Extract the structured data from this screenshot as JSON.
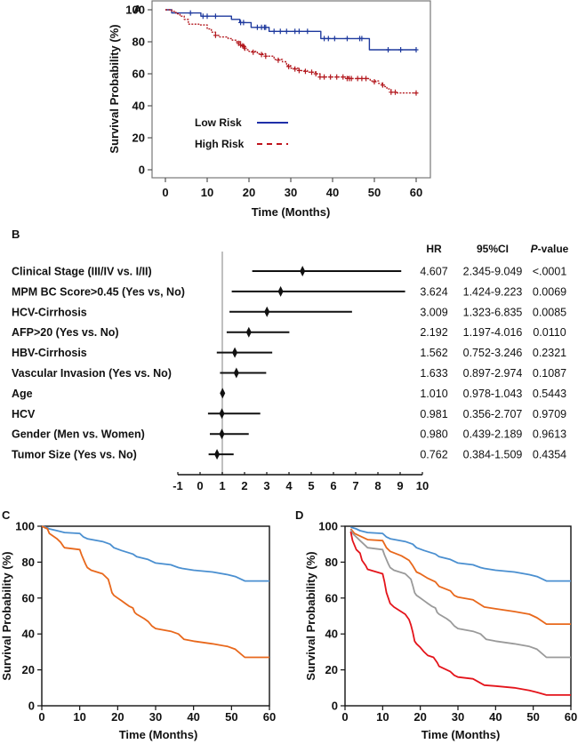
{
  "chart_data": [
    {
      "panel": "A",
      "type": "line",
      "title": "",
      "xlabel": "Time (Months)",
      "ylabel": "Survival Probability (%)",
      "xlim": [
        0,
        60
      ],
      "ylim": [
        0,
        100
      ],
      "xticks": [
        0,
        10,
        20,
        30,
        40,
        50,
        60
      ],
      "yticks": [
        0,
        20,
        40,
        60,
        80,
        100
      ],
      "grid": false,
      "legend_position": "lower-left",
      "series": [
        {
          "name": "Low Risk",
          "color": "#1f3a9e",
          "style": "solid",
          "x": [
            0,
            1.5,
            1.5,
            8.5,
            8.5,
            15.8,
            15.8,
            17.8,
            17.8,
            20.5,
            20.5,
            24.8,
            24.8,
            37.2,
            37.2,
            48.8,
            48.8,
            60
          ],
          "y": [
            100,
            100,
            98,
            98,
            96,
            96,
            94,
            94,
            92,
            92,
            89,
            89,
            86.5,
            86.5,
            82,
            82,
            75,
            75
          ],
          "censor_x": [
            6,
            9,
            10,
            12,
            18,
            18.7,
            22,
            23,
            23.7,
            24,
            26,
            27.5,
            29,
            31,
            32,
            34,
            38,
            39,
            40.5,
            43.5,
            46.5,
            47,
            53.3,
            56.3,
            60
          ],
          "censor_y": [
            98,
            96,
            96,
            96,
            92,
            92,
            89,
            89,
            89,
            89,
            86.5,
            86.5,
            86.5,
            86.5,
            86.5,
            86.5,
            82,
            82,
            82,
            82,
            82,
            82,
            75,
            75,
            75
          ]
        },
        {
          "name": "High Risk",
          "color": "#b3191f",
          "style": "dashed",
          "x": [
            0,
            1.5,
            2.5,
            3.5,
            4.5,
            5.5,
            8,
            10,
            11,
            12,
            13,
            15,
            16,
            17,
            18,
            19,
            20,
            22,
            24,
            26,
            28,
            29,
            30,
            32,
            34,
            36,
            37,
            40,
            44,
            48,
            49,
            51,
            52,
            53,
            54,
            55,
            60
          ],
          "y": [
            100,
            99,
            97.5,
            96,
            94,
            91,
            90.5,
            88,
            86,
            84,
            83,
            82,
            81,
            80,
            78,
            75,
            74,
            72.5,
            71,
            69,
            67.5,
            65,
            63.5,
            62,
            61,
            60,
            58,
            58,
            57,
            57,
            55.5,
            54,
            52,
            50.5,
            48.5,
            48,
            48
          ],
          "censor_x": [
            12,
            17.5,
            18,
            18.5,
            18.8,
            19,
            21,
            23,
            24,
            27,
            29.5,
            31,
            32,
            33.5,
            35,
            36,
            37,
            38,
            39.5,
            41,
            42.5,
            43.5,
            44,
            44.5,
            46,
            47,
            48,
            50,
            52,
            54,
            55,
            60
          ],
          "censor_y": [
            84,
            79,
            78,
            77.5,
            77,
            76,
            73.5,
            72,
            71,
            68.5,
            64.5,
            63,
            62,
            61.5,
            61,
            60,
            58,
            58,
            58,
            58,
            58,
            57,
            57,
            57,
            57,
            57,
            57,
            55,
            53,
            48.5,
            48.5,
            48
          ]
        }
      ]
    },
    {
      "panel": "B",
      "type": "forest",
      "xlim": [
        -1,
        10
      ],
      "xticks": [
        -1,
        0,
        1,
        2,
        3,
        4,
        5,
        6,
        7,
        8,
        9,
        10
      ],
      "reference_line": 1,
      "columns": [
        "HR",
        "95%CI",
        "P-value"
      ],
      "rows": [
        {
          "label": "Clinical Stage (III/IV vs. I/II)",
          "hr": 4.607,
          "lo": 2.345,
          "hi": 9.049,
          "hr_text": "4.607",
          "ci_text": "2.345-9.049",
          "p_text": "<.0001"
        },
        {
          "label": "MPM BC Score>0.45 (Yes vs, No)",
          "hr": 3.624,
          "lo": 1.424,
          "hi": 9.223,
          "hr_text": "3.624",
          "ci_text": "1.424-9.223",
          "p_text": "0.0069"
        },
        {
          "label": "HCV-Cirrhosis",
          "hr": 3.009,
          "lo": 1.323,
          "hi": 6.835,
          "hr_text": "3.009",
          "ci_text": "1.323-6.835",
          "p_text": "0.0085"
        },
        {
          "label": "AFP>20 (Yes vs. No)",
          "hr": 2.192,
          "lo": 1.197,
          "hi": 4.016,
          "hr_text": "2.192",
          "ci_text": "1.197-4.016",
          "p_text": "0.0110"
        },
        {
          "label": "HBV-Cirrhosis",
          "hr": 1.562,
          "lo": 0.752,
          "hi": 3.246,
          "hr_text": "1.562",
          "ci_text": "0.752-3.246",
          "p_text": "0.2321"
        },
        {
          "label": "Vascular Invasion (Yes vs. No)",
          "hr": 1.633,
          "lo": 0.897,
          "hi": 2.974,
          "hr_text": "1.633",
          "ci_text": "0.897-2.974",
          "p_text": "0.1087"
        },
        {
          "label": "Age",
          "hr": 1.01,
          "lo": 0.978,
          "hi": 1.043,
          "hr_text": "1.010",
          "ci_text": "0.978-1.043",
          "p_text": "0.5443"
        },
        {
          "label": "HCV",
          "hr": 0.981,
          "lo": 0.356,
          "hi": 2.707,
          "hr_text": "0.981",
          "ci_text": "0.356-2.707",
          "p_text": "0.9709"
        },
        {
          "label": "Gender (Men vs. Women)",
          "hr": 0.98,
          "lo": 0.439,
          "hi": 2.189,
          "hr_text": "0.980",
          "ci_text": "0.439-2.189",
          "p_text": "0.9613"
        },
        {
          "label": "Tumor Size (Yes vs. No)",
          "hr": 0.762,
          "lo": 0.384,
          "hi": 1.509,
          "hr_text": "0.762",
          "ci_text": "0.384-1.509",
          "p_text": "0.4354"
        }
      ]
    },
    {
      "panel": "C",
      "type": "line",
      "xlabel": "Time (Months)",
      "ylabel": "Survival Probability (%)",
      "xlim": [
        0,
        60
      ],
      "ylim": [
        0,
        100
      ],
      "xticks": [
        0,
        10,
        20,
        30,
        40,
        50,
        60
      ],
      "yticks": [
        0,
        20,
        40,
        60,
        80,
        100
      ],
      "grid": false,
      "series": [
        {
          "name": "blue",
          "color": "#4a8fd0",
          "x": [
            0,
            1,
            2,
            3,
            4,
            6,
            10,
            11,
            12,
            16,
            18,
            19,
            21,
            24,
            25,
            28,
            30,
            34,
            36,
            37,
            40,
            45,
            49,
            51,
            53.5,
            60
          ],
          "y": [
            100,
            99.5,
            98.5,
            98,
            97.5,
            96.5,
            96,
            94,
            93,
            91.5,
            90,
            88,
            86.5,
            84.5,
            83,
            81.5,
            79.5,
            78.5,
            77,
            76.5,
            75.5,
            74.5,
            73,
            72,
            69.5,
            69.5
          ]
        },
        {
          "name": "orange",
          "color": "#e8681c",
          "x": [
            0,
            1.5,
            2,
            3,
            4,
            5,
            5.8,
            6,
            10,
            10.5,
            11.5,
            12,
            13,
            16,
            17.5,
            18,
            18.5,
            19,
            20,
            21,
            22,
            23,
            24,
            24.5,
            25,
            27,
            28,
            29,
            30,
            34,
            36,
            37.5,
            40,
            45,
            49,
            51,
            53.5,
            60
          ],
          "y": [
            100,
            98.5,
            96,
            94.5,
            93,
            91,
            88.5,
            88,
            87,
            84,
            79,
            77,
            75.5,
            73.5,
            70.5,
            67,
            63,
            61.5,
            60,
            58.5,
            57,
            55.5,
            54.5,
            52,
            51,
            48.5,
            47,
            44.5,
            43,
            41.5,
            40,
            37,
            36,
            34.5,
            33,
            31.5,
            27,
            27
          ]
        }
      ]
    },
    {
      "panel": "D",
      "type": "line",
      "xlabel": "Time (Months)",
      "ylabel": "Survival Probability (%)",
      "xlim": [
        0,
        60
      ],
      "ylim": [
        0,
        100
      ],
      "xticks": [
        0,
        10,
        20,
        30,
        40,
        50,
        60
      ],
      "yticks": [
        0,
        20,
        40,
        60,
        80,
        100
      ],
      "grid": false,
      "series": [
        {
          "name": "blue",
          "color": "#4a8fd0",
          "x": [
            1.5,
            3,
            4,
            6,
            10,
            11,
            12,
            16,
            18,
            19,
            21,
            24,
            25,
            28,
            30,
            34,
            36,
            37,
            40,
            45,
            49,
            51,
            53.5,
            60
          ],
          "y": [
            99.5,
            98.5,
            97.5,
            96.5,
            96,
            94,
            93,
            91.5,
            90,
            88,
            86.5,
            84.5,
            83,
            81.5,
            79.5,
            78.5,
            77,
            76.5,
            75.5,
            74.5,
            73,
            72,
            69.5,
            69.5
          ]
        },
        {
          "name": "orange",
          "color": "#e8681c",
          "x": [
            1.5,
            2.5,
            4,
            6,
            10,
            11,
            12,
            15,
            17,
            18,
            19,
            20,
            22,
            24,
            25,
            28,
            29,
            30,
            34,
            37,
            40,
            45,
            49,
            51,
            53.5,
            60
          ],
          "y": [
            98.5,
            96,
            94.5,
            92.5,
            92,
            88,
            86,
            83.5,
            81,
            78,
            74.5,
            73.5,
            71,
            69,
            66.5,
            64,
            61.5,
            60.5,
            59,
            55,
            54,
            52.5,
            51,
            49,
            45.5,
            45.5
          ]
        },
        {
          "name": "gray",
          "color": "#9a9a9a",
          "x": [
            1.5,
            2,
            3,
            4,
            5,
            6,
            10,
            10.5,
            11.5,
            12,
            13,
            16,
            17.5,
            18,
            18.5,
            19,
            20,
            21,
            22,
            23,
            24,
            24.5,
            25,
            27,
            28,
            29,
            30,
            34,
            36,
            37.5,
            40,
            45,
            49,
            51,
            53.5,
            60
          ],
          "y": [
            98,
            96,
            94,
            92,
            90,
            88,
            87,
            84,
            79,
            77,
            75.5,
            73.5,
            70.5,
            67,
            63,
            61.5,
            60,
            58.5,
            57,
            55.5,
            54.5,
            52,
            51,
            48.5,
            47,
            44.5,
            43,
            41.5,
            40,
            37,
            36,
            34.5,
            33,
            31.5,
            27,
            27
          ]
        },
        {
          "name": "red",
          "color": "#e4141b",
          "x": [
            1.5,
            2,
            3,
            4,
            4.5,
            5.5,
            6,
            10,
            10.5,
            11,
            11.5,
            12,
            13,
            16,
            17,
            17.5,
            18,
            18.5,
            19,
            20,
            21,
            22,
            23.5,
            24.5,
            25,
            27,
            28,
            29,
            30,
            34,
            37,
            40,
            45,
            49,
            51,
            53.5,
            60
          ],
          "y": [
            97,
            92,
            87,
            85,
            81,
            78,
            76,
            73.5,
            69,
            63,
            60,
            57,
            55,
            51,
            48,
            45,
            41,
            36,
            34.5,
            32.5,
            30,
            28,
            27,
            24,
            22,
            20,
            19,
            17,
            16,
            15,
            11.5,
            11,
            10,
            8.5,
            7.5,
            6,
            6
          ]
        }
      ]
    }
  ],
  "panels": {
    "a_label": "A",
    "b_label": "B",
    "c_label": "C",
    "d_label": "D"
  },
  "legend_a": {
    "low": "Low Risk",
    "high": "High Risk"
  },
  "forest_header": {
    "hr": "HR",
    "ci": "95%CI",
    "p_italic": "P",
    "p_rest": "-value"
  }
}
